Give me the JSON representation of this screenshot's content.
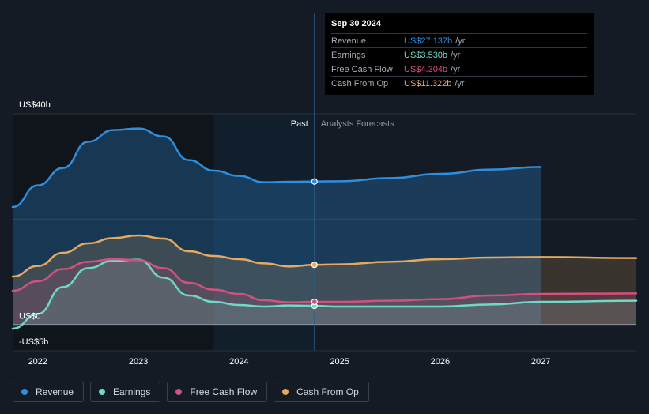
{
  "chart_data": {
    "type": "area",
    "title": "",
    "xlabel": "",
    "ylabel": "",
    "x_ticks": [
      "2022",
      "2023",
      "2024",
      "2025",
      "2026",
      "2027"
    ],
    "y_labels": [
      "US$40b",
      "US$0",
      "-US$5b"
    ],
    "ylim": [
      -5,
      40
    ],
    "xlim": [
      2021.75,
      2027.95
    ],
    "past_label": "Past",
    "forecast_label": "Analysts Forecasts",
    "past_end": 2024.75,
    "series": [
      {
        "name": "Revenue",
        "color": "#2e8fe0",
        "x": [
          2021.75,
          2022.0,
          2022.25,
          2022.5,
          2022.75,
          2023.0,
          2023.25,
          2023.5,
          2023.75,
          2024.0,
          2024.25,
          2024.5,
          2024.75,
          2025.0,
          2025.5,
          2026.0,
          2026.5,
          2027.0
        ],
        "y": [
          22.3,
          26.4,
          29.7,
          34.7,
          36.9,
          37.2,
          35.7,
          31.2,
          29.2,
          28.2,
          27.0,
          27.1,
          27.137,
          27.2,
          27.8,
          28.6,
          29.4,
          29.9
        ]
      },
      {
        "name": "Earnings",
        "color": "#6fd9c6",
        "x": [
          2021.75,
          2022.0,
          2022.25,
          2022.5,
          2022.75,
          2023.0,
          2023.25,
          2023.5,
          2023.75,
          2024.0,
          2024.25,
          2024.5,
          2024.75,
          2025.0,
          2025.5,
          2026.0,
          2026.5,
          2027.0,
          2027.95
        ],
        "y": [
          -0.8,
          2.0,
          7.1,
          10.7,
          12.1,
          12.3,
          8.9,
          5.5,
          4.3,
          3.7,
          3.4,
          3.6,
          3.53,
          3.4,
          3.4,
          3.4,
          3.8,
          4.3,
          4.5
        ]
      },
      {
        "name": "Free Cash Flow",
        "color": "#d2527f",
        "x": [
          2021.75,
          2022.0,
          2022.25,
          2022.5,
          2022.75,
          2023.0,
          2023.25,
          2023.5,
          2023.75,
          2024.0,
          2024.25,
          2024.5,
          2024.75,
          2025.0,
          2025.5,
          2026.0,
          2026.5,
          2027.0,
          2027.95
        ],
        "y": [
          6.4,
          8.2,
          10.5,
          11.9,
          12.4,
          12.2,
          10.7,
          7.9,
          6.6,
          5.8,
          4.6,
          4.2,
          4.304,
          4.3,
          4.5,
          4.8,
          5.5,
          5.8,
          5.9
        ]
      },
      {
        "name": "Cash From Op",
        "color": "#e6a95f",
        "x": [
          2021.75,
          2022.0,
          2022.25,
          2022.5,
          2022.75,
          2023.0,
          2023.25,
          2023.5,
          2023.75,
          2024.0,
          2024.25,
          2024.5,
          2024.75,
          2025.0,
          2025.5,
          2026.0,
          2026.5,
          2027.0,
          2027.95
        ],
        "y": [
          9.1,
          11.1,
          13.6,
          15.4,
          16.4,
          16.9,
          16.3,
          13.9,
          13.0,
          12.4,
          11.6,
          11.0,
          11.322,
          11.4,
          11.9,
          12.4,
          12.7,
          12.8,
          12.6
        ]
      }
    ]
  },
  "tooltip": {
    "date": "Sep 30 2024",
    "rows": [
      {
        "label": "Revenue",
        "value": "US$27.137b",
        "unit": "/yr",
        "color": "#2e8fe0"
      },
      {
        "label": "Earnings",
        "value": "US$3.530b",
        "unit": "/yr",
        "color": "#6fd9c6"
      },
      {
        "label": "Free Cash Flow",
        "value": "US$4.304b",
        "unit": "/yr",
        "color": "#d2527f"
      },
      {
        "label": "Cash From Op",
        "value": "US$11.322b",
        "unit": "/yr",
        "color": "#e6a95f"
      }
    ]
  },
  "legend": [
    {
      "label": "Revenue",
      "color": "#2e8fe0"
    },
    {
      "label": "Earnings",
      "color": "#6fd9c6"
    },
    {
      "label": "Free Cash Flow",
      "color": "#d2527f"
    },
    {
      "label": "Cash From Op",
      "color": "#e6a95f"
    }
  ]
}
